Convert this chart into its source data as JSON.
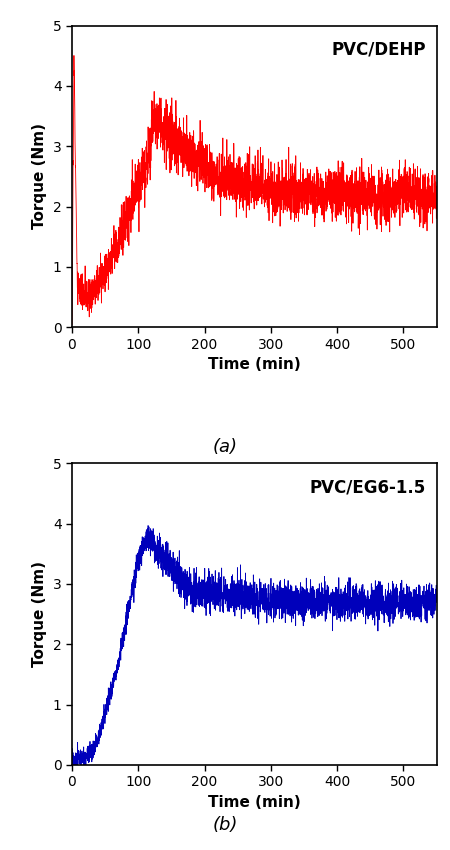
{
  "fig_width": 4.5,
  "fig_height": 8.5,
  "dpi": 100,
  "subplot_a": {
    "label": "PVC/DEHP",
    "color": "#ff0000",
    "xlabel": "Time (min)",
    "ylabel": "Torque (Nm)",
    "xlim": [
      0,
      550
    ],
    "ylim": [
      0,
      5
    ],
    "xticks": [
      0,
      100,
      200,
      300,
      400,
      500
    ],
    "yticks": [
      0,
      1,
      2,
      3,
      4,
      5
    ],
    "caption": "(a)",
    "line_width": 0.6
  },
  "subplot_b": {
    "label": "PVC/EG6-1.5",
    "color": "#0000bb",
    "xlabel": "Time (min)",
    "ylabel": "Torque (Nm)",
    "xlim": [
      0,
      550
    ],
    "ylim": [
      0,
      5
    ],
    "xticks": [
      0,
      100,
      200,
      300,
      400,
      500
    ],
    "yticks": [
      0,
      1,
      2,
      3,
      4,
      5
    ],
    "caption": "(b)",
    "line_width": 0.6
  }
}
